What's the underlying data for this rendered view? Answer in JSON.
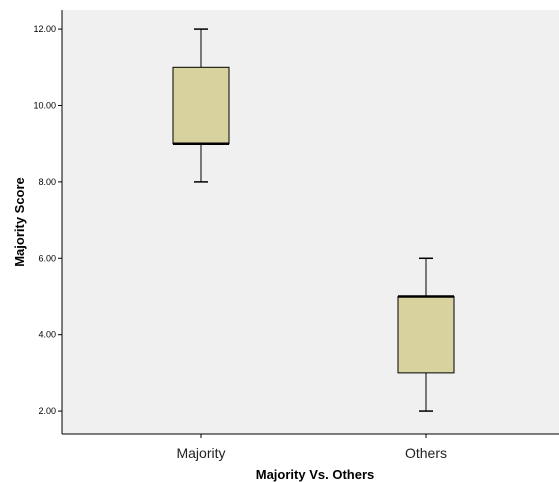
{
  "chart_data": {
    "type": "boxplot",
    "title": "",
    "xlabel": "Majority Vs. Others",
    "ylabel": "Majority Score",
    "ylim": [
      1.4,
      12.5
    ],
    "yticks": [
      2,
      4,
      6,
      8,
      10,
      12
    ],
    "ytick_labels": [
      "2.00",
      "4.00",
      "6.00",
      "8.00",
      "10.00",
      "12.00"
    ],
    "grid": false,
    "categories": [
      "Majority",
      "Others"
    ],
    "boxes": [
      {
        "category": "Majority",
        "min": 8,
        "q1": 9,
        "median": 9,
        "q3": 11,
        "max": 12
      },
      {
        "category": "Others",
        "min": 2,
        "q1": 3,
        "median": 5,
        "q3": 5,
        "max": 6
      }
    ],
    "colors": {
      "plot_background": "#f0f0f0",
      "box_fill": "#d8d29f",
      "stroke": "#000000"
    }
  }
}
